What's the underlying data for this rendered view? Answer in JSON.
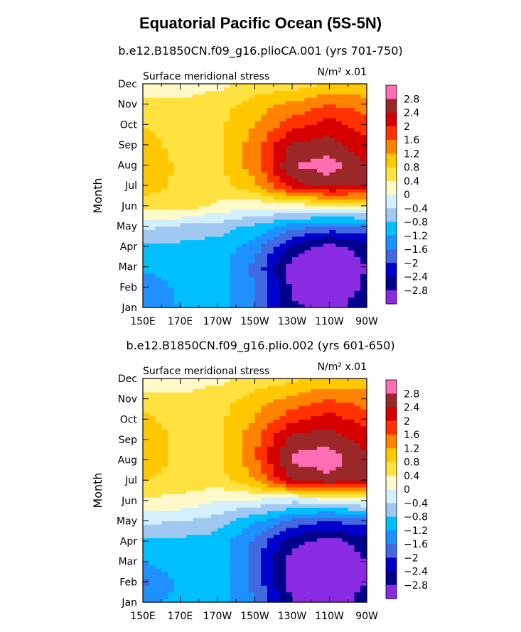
{
  "title": "Equatorial Pacific Ocean (5S-5N)",
  "colors": {
    "levels": [
      -2.8,
      -2.4,
      -2.0,
      -1.6,
      -1.2,
      -0.8,
      -0.4,
      0.0,
      0.4,
      0.8,
      1.2,
      1.6,
      2.0,
      2.4,
      2.8
    ],
    "fills": [
      "#8a2be2",
      "#00008b",
      "#0000cd",
      "#4169e1",
      "#1e90ff",
      "#00bfff",
      "#a0c8f0",
      "#d2f0ff",
      "#fffac8",
      "#ffe140",
      "#ffc800",
      "#ff8200",
      "#ff3200",
      "#d70000",
      "#9b2828",
      "#ff6eb4"
    ]
  },
  "chart_data": [
    {
      "type": "heatmap",
      "subtitle": "b.e12.B1850CN.f09_g16.plioCA.001 (yrs 701-750)",
      "left_label": "Surface meridional stress",
      "right_label": "N/m² x.01",
      "ylabel": "Month",
      "x_ticks": [
        "150E",
        "170E",
        "170W",
        "150W",
        "130W",
        "110W",
        "90W"
      ],
      "y_ticks": [
        "Jan",
        "Feb",
        "Mar",
        "Apr",
        "May",
        "Jun",
        "Jul",
        "Aug",
        "Sep",
        "Oct",
        "Nov",
        "Dec"
      ],
      "colorbar_labels": [
        "2.8",
        "2.4",
        "2",
        "1.6",
        "1.2",
        "0.8",
        "0.4",
        "0",
        "-0.4",
        "-0.8",
        "-1.2",
        "-1.6",
        "-2",
        "-2.4",
        "-2.8"
      ],
      "x": [
        150,
        170,
        190,
        210,
        230,
        250,
        270
      ],
      "y": [
        "Jan",
        "Feb",
        "Mar",
        "Apr",
        "May",
        "Jun",
        "Jul",
        "Aug",
        "Sep",
        "Oct",
        "Nov",
        "Dec"
      ],
      "z": [
        [
          -1.3,
          -1.2,
          -1.0,
          -1.5,
          -2.7,
          -3.0,
          -2.5
        ],
        [
          -1.5,
          -1.1,
          -1.0,
          -1.6,
          -2.9,
          -3.2,
          -2.7
        ],
        [
          -1.1,
          -1.0,
          -1.0,
          -1.7,
          -3.0,
          -3.2,
          -2.8
        ],
        [
          -0.9,
          -0.9,
          -1.0,
          -1.4,
          -2.5,
          -3.0,
          -2.6
        ],
        [
          -0.3,
          -0.5,
          -0.6,
          -0.9,
          -1.4,
          -1.7,
          -1.6
        ],
        [
          0.6,
          0.7,
          0.3,
          0.1,
          0.2,
          0.3,
          0.4
        ],
        [
          1.0,
          0.7,
          0.6,
          1.1,
          2.2,
          2.6,
          2.4
        ],
        [
          1.2,
          0.7,
          0.7,
          1.4,
          2.8,
          3.0,
          2.4
        ],
        [
          1.0,
          0.6,
          0.7,
          1.4,
          2.5,
          2.6,
          2.1
        ],
        [
          0.8,
          0.6,
          0.7,
          1.2,
          1.8,
          2.2,
          1.8
        ],
        [
          0.6,
          0.5,
          0.6,
          1.0,
          1.3,
          1.6,
          1.4
        ],
        [
          0.1,
          0.2,
          0.3,
          0.5,
          0.6,
          0.8,
          0.9
        ]
      ]
    },
    {
      "type": "heatmap",
      "subtitle": "b.e12.B1850CN.f09_g16.plio.002 (yrs 601-650)",
      "left_label": "Surface meridional stress",
      "right_label": "N/m² x.01",
      "ylabel": "Month",
      "x_ticks": [
        "150E",
        "170E",
        "170W",
        "150W",
        "130W",
        "110W",
        "90W"
      ],
      "y_ticks": [
        "Jan",
        "Feb",
        "Mar",
        "Apr",
        "May",
        "Jun",
        "Jul",
        "Aug",
        "Sep",
        "Oct",
        "Nov",
        "Dec"
      ],
      "colorbar_labels": [
        "2.8",
        "2.4",
        "2",
        "1.6",
        "1.2",
        "0.8",
        "0.4",
        "0",
        "-0.4",
        "-0.8",
        "-1.2",
        "-1.6",
        "-2",
        "-2.4",
        "-2.8"
      ],
      "x": [
        150,
        170,
        190,
        210,
        230,
        250,
        270
      ],
      "y": [
        "Jan",
        "Feb",
        "Mar",
        "Apr",
        "May",
        "Jun",
        "Jul",
        "Aug",
        "Sep",
        "Oct",
        "Nov",
        "Dec"
      ],
      "z": [
        [
          -1.3,
          -1.1,
          -1.0,
          -1.6,
          -2.8,
          -3.1,
          -2.6
        ],
        [
          -1.7,
          -1.1,
          -1.0,
          -1.7,
          -3.0,
          -3.2,
          -2.8
        ],
        [
          -1.2,
          -1.0,
          -1.0,
          -1.8,
          -3.0,
          -3.2,
          -2.8
        ],
        [
          -0.9,
          -0.9,
          -1.0,
          -1.7,
          -2.7,
          -3.0,
          -2.6
        ],
        [
          -0.3,
          -0.4,
          -0.6,
          -1.1,
          -1.7,
          -2.0,
          -1.8
        ],
        [
          0.3,
          0.3,
          0.0,
          -0.1,
          -0.3,
          -0.2,
          0.1
        ],
        [
          0.8,
          0.6,
          0.6,
          1.2,
          2.4,
          2.7,
          2.4
        ],
        [
          1.1,
          0.7,
          0.7,
          1.5,
          2.9,
          3.0,
          2.5
        ],
        [
          1.1,
          0.7,
          0.7,
          1.5,
          2.6,
          2.7,
          2.2
        ],
        [
          0.9,
          0.6,
          0.7,
          1.2,
          1.9,
          2.2,
          1.8
        ],
        [
          0.6,
          0.5,
          0.6,
          1.0,
          1.3,
          1.6,
          1.4
        ],
        [
          0.1,
          0.2,
          0.3,
          0.5,
          0.7,
          0.9,
          1.0
        ]
      ]
    }
  ]
}
